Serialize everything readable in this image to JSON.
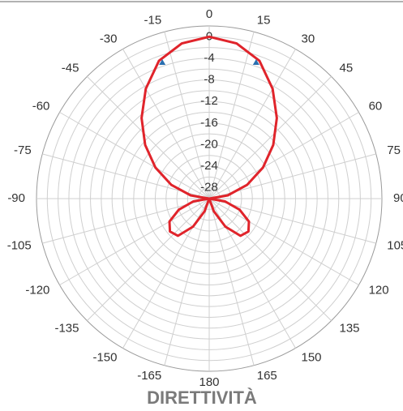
{
  "chart_data": {
    "type": "polar",
    "title": "DIRETTIVITÀ",
    "theta": [
      -180,
      -170,
      -160,
      -150,
      -140,
      -130,
      -120,
      -110,
      -100,
      -90,
      -80,
      -70,
      -60,
      -50,
      -40,
      -30,
      -20,
      -10,
      0,
      10,
      20,
      30,
      40,
      50,
      60,
      70,
      80,
      90,
      100,
      110,
      120,
      130,
      140,
      150,
      160,
      170,
      180
    ],
    "values": [
      -30,
      -30,
      -27.5,
      -24,
      -21,
      -20.5,
      -21.5,
      -24,
      -27,
      -30,
      -26.5,
      -22.5,
      -18.5,
      -14.5,
      -10.5,
      -6.5,
      -2.8,
      -0.8,
      0,
      -0.8,
      -2.8,
      -6.5,
      -10.5,
      -14.5,
      -18.5,
      -22.5,
      -26.5,
      -30,
      -27,
      -24,
      -21.5,
      -20.5,
      -21,
      -24,
      -27.5,
      -30,
      -30
    ],
    "color": "#e0242b",
    "markers": {
      "theta": [
        -19,
        19
      ],
      "r": [
        -3.3,
        -3.3
      ],
      "color": "#2a6fb0"
    },
    "rlim": [
      -30,
      2
    ],
    "rticks": [
      0,
      -4,
      -8,
      -12,
      -16,
      -20,
      -24,
      -28
    ],
    "rgrid": [
      -28,
      -26,
      -24,
      -22,
      -20,
      -18,
      -16,
      -14,
      -12,
      -10,
      -8,
      -6,
      -4,
      -2,
      0,
      2
    ],
    "thetaticks": [
      0,
      15,
      30,
      45,
      60,
      75,
      90,
      105,
      120,
      135,
      150,
      165,
      180,
      -165,
      -150,
      -135,
      -120,
      -105,
      -90,
      -75,
      -60,
      -45,
      -30,
      -15
    ],
    "theta_zero": "top",
    "theta_direction": "clockwise"
  }
}
